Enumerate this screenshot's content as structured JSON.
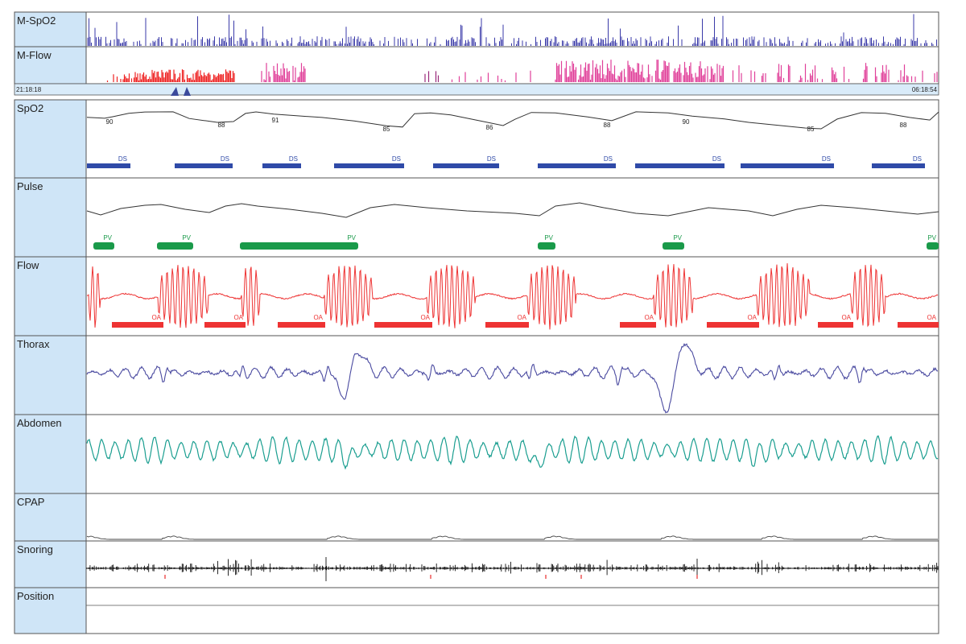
{
  "colors": {
    "background": "#ffffff",
    "label_panel": "#cfe5f7",
    "border": "#555555",
    "mspo2": "#3a3aa8",
    "mflow_red": "#ee2222",
    "mflow_pink": "#e0409a",
    "mflow_purple": "#9a2a7a",
    "timebar": "#d9ebf9",
    "cursor": "#3b4a9c",
    "spo2_trace": "#333333",
    "ds_event": "#2f4aa8",
    "pulse_trace": "#333333",
    "pv_event": "#1a9a4a",
    "flow_trace": "#ee3333",
    "oa_event": "#ee3333",
    "thorax_trace": "#4a4aa0",
    "abdomen_trace": "#1a9e90",
    "cpap_trace": "#444444",
    "snoring_trace": "#111111",
    "snoring_marker": "#ee5555"
  },
  "timebar": {
    "start_time": "21:18:18",
    "end_time": "06:18:54"
  },
  "chart_data": {
    "type": "line",
    "description_source": "polysomnography-style multichannel recording",
    "overview_channels": [
      {
        "name": "M-SpO2"
      },
      {
        "name": "M-Flow"
      }
    ],
    "channels": [
      {
        "name": "SpO2",
        "value_labels": [
          "90",
          "88",
          "91",
          "85",
          "86",
          "88",
          "90",
          "85",
          "88"
        ],
        "events": {
          "label": "DS",
          "count": 9
        }
      },
      {
        "name": "Pulse",
        "events": {
          "label": "PV",
          "count": 6
        }
      },
      {
        "name": "Flow",
        "events": {
          "label": "OA",
          "count": 9
        }
      },
      {
        "name": "Thorax"
      },
      {
        "name": "Abdomen"
      },
      {
        "name": "CPAP"
      },
      {
        "name": "Snoring"
      },
      {
        "name": "Position"
      }
    ]
  }
}
